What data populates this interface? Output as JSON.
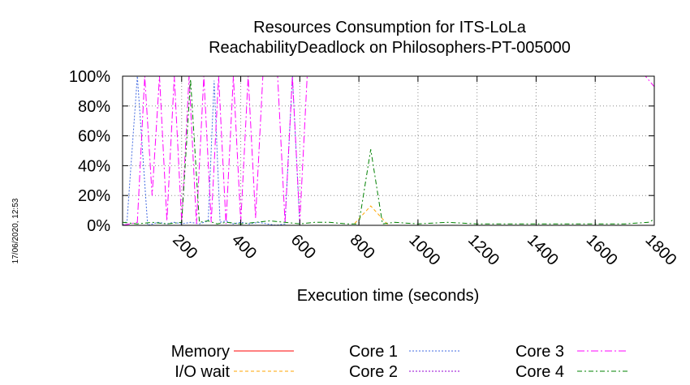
{
  "chart_data": {
    "type": "line",
    "title": "Resources Consumption for ITS-LoLa",
    "subtitle": "ReachabilityDeadlock on Philosophers-PT-005000",
    "xlabel": "Execution time (seconds)",
    "ylabel": "",
    "timestamp": "17/06/2020, 12:53",
    "xlim": [
      0,
      1800
    ],
    "ylim": [
      0,
      100
    ],
    "grid": true,
    "legend_position": "bottom",
    "xticks": [
      200,
      400,
      600,
      800,
      1000,
      1200,
      1400,
      1600,
      1800
    ],
    "xtick_labels": [
      "200",
      "400",
      "600",
      "800",
      "1000",
      "1200",
      "1400",
      "1600",
      "1800"
    ],
    "yticks": [
      0,
      20,
      40,
      60,
      80,
      100
    ],
    "ytick_labels": [
      "0%",
      "20%",
      "40%",
      "60%",
      "80%",
      "100%"
    ],
    "series": [
      {
        "name": "Memory",
        "color": "#ff0000",
        "dash": "",
        "x": [
          0,
          1800
        ],
        "y": [
          0,
          0
        ]
      },
      {
        "name": "I/O wait",
        "color": "#ffa500",
        "dash": "4,3",
        "x": [
          0,
          780,
          840,
          900,
          1800
        ],
        "y": [
          0,
          0,
          13,
          0,
          0
        ]
      },
      {
        "name": "Core 1",
        "color": "#4169e1",
        "dash": "2,2",
        "x": [
          0,
          15,
          50,
          85,
          120,
          150,
          175,
          200,
          230,
          260,
          290,
          310,
          330,
          350,
          375,
          400,
          430,
          460,
          490,
          520,
          550,
          575,
          600,
          625,
          660,
          700,
          760,
          840,
          900,
          1000,
          1100,
          1200,
          1300,
          1400,
          1500,
          1600,
          1700,
          1780,
          1800
        ],
        "y": [
          0,
          3,
          100,
          0,
          2,
          1,
          2,
          1,
          2,
          1,
          3,
          97,
          2,
          3,
          1,
          2,
          1,
          2,
          1,
          0,
          1,
          100,
          0,
          0,
          0,
          0,
          0,
          0,
          0,
          0,
          0,
          0,
          0,
          0,
          0,
          0,
          0,
          0,
          0
        ]
      },
      {
        "name": "Core 2",
        "color": "#9400d3",
        "dash": "2,2",
        "x": [
          0,
          1800
        ],
        "y": [
          0,
          0
        ]
      },
      {
        "name": "Core 3",
        "color": "#ff00ff",
        "dash": "9,3,2,3",
        "x": [
          0,
          25,
          50,
          75,
          100,
          125,
          150,
          175,
          200,
          225,
          250,
          275,
          300,
          325,
          350,
          375,
          400,
          425,
          450,
          475,
          500,
          525,
          550,
          575,
          600,
          625,
          650,
          700,
          800,
          900,
          1000,
          1200,
          1400,
          1600,
          1700,
          1770,
          1800
        ],
        "y": [
          0,
          1,
          2,
          100,
          20,
          100,
          3,
          100,
          2,
          100,
          1,
          100,
          2,
          100,
          1,
          100,
          2,
          100,
          5,
          100,
          100,
          100,
          2,
          100,
          2,
          100,
          100,
          100,
          100,
          100,
          100,
          100,
          100,
          100,
          100,
          100,
          93
        ]
      },
      {
        "name": "Core 4",
        "color": "#008000",
        "dash": "6,3,2,3",
        "x": [
          0,
          50,
          100,
          150,
          200,
          230,
          260,
          290,
          320,
          350,
          400,
          450,
          500,
          550,
          600,
          650,
          700,
          760,
          800,
          840,
          880,
          920,
          1000,
          1100,
          1200,
          1300,
          1400,
          1500,
          1600,
          1700,
          1780,
          1800
        ],
        "y": [
          2,
          1,
          2,
          1,
          2,
          98,
          2,
          3,
          1,
          2,
          1,
          2,
          3,
          2,
          1,
          2,
          2,
          1,
          1,
          51,
          1,
          2,
          1,
          2,
          1,
          1,
          1,
          1,
          1,
          1,
          2,
          4
        ]
      }
    ]
  }
}
